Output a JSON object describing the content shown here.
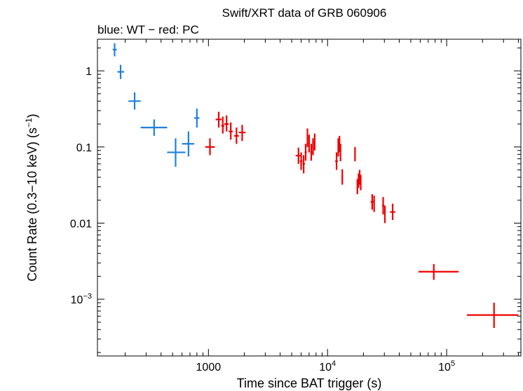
{
  "chart_data": {
    "type": "scatter",
    "title": "Swift/XRT data of GRB 060906",
    "subtitle": "blue: WT − red: PC",
    "xlabel": "Time since BAT trigger (s)",
    "ylabel": "Count Rate (0.3−10 keV) (s",
    "ylabel_sup": "−1",
    "ylabel_end": ")",
    "xscale": "log",
    "yscale": "log",
    "xlim": [
      117,
      420000
    ],
    "ylim": [
      0.00018,
      2.6
    ],
    "x_ticks": [
      {
        "value": 1000,
        "label": "1000"
      },
      {
        "value": 10000,
        "label": "10",
        "sup": "4"
      },
      {
        "value": 100000,
        "label": "10",
        "sup": "5"
      }
    ],
    "y_ticks": [
      {
        "value": 1,
        "label": "1"
      },
      {
        "value": 0.1,
        "label": "0.1"
      },
      {
        "value": 0.01,
        "label": "0.01"
      },
      {
        "value": 0.001,
        "label": "10",
        "sup": "−3"
      }
    ],
    "series": [
      {
        "name": "WT",
        "color": "#1f7fe0",
        "points": [
          {
            "x": 163,
            "xlo": 157,
            "xhi": 170,
            "y": 1.9,
            "ylo": 1.55,
            "yhi": 2.3
          },
          {
            "x": 183,
            "xlo": 172,
            "xhi": 196,
            "y": 0.97,
            "ylo": 0.78,
            "yhi": 1.2
          },
          {
            "x": 240,
            "xlo": 213,
            "xhi": 270,
            "y": 0.4,
            "ylo": 0.31,
            "yhi": 0.52
          },
          {
            "x": 350,
            "xlo": 270,
            "xhi": 450,
            "y": 0.18,
            "ylo": 0.14,
            "yhi": 0.23
          },
          {
            "x": 530,
            "xlo": 450,
            "xhi": 640,
            "y": 0.085,
            "ylo": 0.055,
            "yhi": 0.13
          },
          {
            "x": 680,
            "xlo": 600,
            "xhi": 760,
            "y": 0.11,
            "ylo": 0.075,
            "yhi": 0.16
          },
          {
            "x": 800,
            "xlo": 760,
            "xhi": 840,
            "y": 0.24,
            "ylo": 0.18,
            "yhi": 0.32
          }
        ]
      },
      {
        "name": "PC",
        "color": "#ee0000",
        "points": [
          {
            "x": 1030,
            "xlo": 940,
            "xhi": 1130,
            "y": 0.1,
            "ylo": 0.078,
            "yhi": 0.13
          },
          {
            "x": 1220,
            "xlo": 1150,
            "xhi": 1290,
            "y": 0.23,
            "ylo": 0.18,
            "yhi": 0.29
          },
          {
            "x": 1320,
            "xlo": 1280,
            "xhi": 1360,
            "y": 0.19,
            "ylo": 0.15,
            "yhi": 0.25
          },
          {
            "x": 1420,
            "xlo": 1360,
            "xhi": 1480,
            "y": 0.2,
            "ylo": 0.16,
            "yhi": 0.26
          },
          {
            "x": 1540,
            "xlo": 1480,
            "xhi": 1600,
            "y": 0.16,
            "ylo": 0.125,
            "yhi": 0.21
          },
          {
            "x": 1720,
            "xlo": 1640,
            "xhi": 1800,
            "y": 0.14,
            "ylo": 0.11,
            "yhi": 0.18
          },
          {
            "x": 1920,
            "xlo": 1800,
            "xhi": 2050,
            "y": 0.155,
            "ylo": 0.12,
            "yhi": 0.195
          },
          {
            "x": 5700,
            "xlo": 5400,
            "xhi": 6000,
            "y": 0.077,
            "ylo": 0.06,
            "yhi": 0.098
          },
          {
            "x": 6000,
            "xlo": 5850,
            "xhi": 6150,
            "y": 0.065,
            "ylo": 0.05,
            "yhi": 0.085
          },
          {
            "x": 6300,
            "xlo": 6150,
            "xhi": 6450,
            "y": 0.06,
            "ylo": 0.045,
            "yhi": 0.078
          },
          {
            "x": 6550,
            "xlo": 6420,
            "xhi": 6680,
            "y": 0.085,
            "ylo": 0.066,
            "yhi": 0.11
          },
          {
            "x": 6780,
            "xlo": 6680,
            "xhi": 6880,
            "y": 0.13,
            "ylo": 0.1,
            "yhi": 0.175
          },
          {
            "x": 7000,
            "xlo": 6900,
            "xhi": 7100,
            "y": 0.11,
            "ylo": 0.085,
            "yhi": 0.145
          },
          {
            "x": 7300,
            "xlo": 7150,
            "xhi": 7450,
            "y": 0.085,
            "ylo": 0.066,
            "yhi": 0.11
          },
          {
            "x": 7550,
            "xlo": 7430,
            "xhi": 7670,
            "y": 0.1,
            "ylo": 0.078,
            "yhi": 0.13
          },
          {
            "x": 7800,
            "xlo": 7680,
            "xhi": 7920,
            "y": 0.115,
            "ylo": 0.09,
            "yhi": 0.15
          },
          {
            "x": 11900,
            "xlo": 11600,
            "xhi": 12200,
            "y": 0.065,
            "ylo": 0.05,
            "yhi": 0.085
          },
          {
            "x": 12300,
            "xlo": 12150,
            "xhi": 12450,
            "y": 0.1,
            "ylo": 0.075,
            "yhi": 0.13
          },
          {
            "x": 12600,
            "xlo": 12450,
            "xhi": 12750,
            "y": 0.11,
            "ylo": 0.085,
            "yhi": 0.14
          },
          {
            "x": 12850,
            "xlo": 12750,
            "xhi": 12950,
            "y": 0.085,
            "ylo": 0.065,
            "yhi": 0.11
          },
          {
            "x": 13300,
            "xlo": 13100,
            "xhi": 13500,
            "y": 0.04,
            "ylo": 0.032,
            "yhi": 0.051
          },
          {
            "x": 17000,
            "xlo": 16800,
            "xhi": 17200,
            "y": 0.082,
            "ylo": 0.065,
            "yhi": 0.1
          },
          {
            "x": 17800,
            "xlo": 17600,
            "xhi": 18000,
            "y": 0.03,
            "ylo": 0.024,
            "yhi": 0.038
          },
          {
            "x": 18200,
            "xlo": 18000,
            "xhi": 18400,
            "y": 0.036,
            "ylo": 0.029,
            "yhi": 0.045
          },
          {
            "x": 18600,
            "xlo": 18400,
            "xhi": 18800,
            "y": 0.04,
            "ylo": 0.032,
            "yhi": 0.05
          },
          {
            "x": 19000,
            "xlo": 18800,
            "xhi": 19200,
            "y": 0.034,
            "ylo": 0.027,
            "yhi": 0.043
          },
          {
            "x": 23700,
            "xlo": 23000,
            "xhi": 24400,
            "y": 0.019,
            "ylo": 0.015,
            "yhi": 0.024
          },
          {
            "x": 24600,
            "xlo": 24300,
            "xhi": 24900,
            "y": 0.018,
            "ylo": 0.014,
            "yhi": 0.023
          },
          {
            "x": 29300,
            "xlo": 28700,
            "xhi": 29900,
            "y": 0.017,
            "ylo": 0.013,
            "yhi": 0.022
          },
          {
            "x": 30300,
            "xlo": 29900,
            "xhi": 30700,
            "y": 0.013,
            "ylo": 0.01,
            "yhi": 0.017
          },
          {
            "x": 35200,
            "xlo": 33500,
            "xhi": 37000,
            "y": 0.014,
            "ylo": 0.011,
            "yhi": 0.018
          },
          {
            "x": 78000,
            "xlo": 58000,
            "xhi": 126000,
            "y": 0.0023,
            "ylo": 0.0018,
            "yhi": 0.0029
          },
          {
            "x": 250000,
            "xlo": 148000,
            "xhi": 400000,
            "y": 0.00062,
            "ylo": 0.00042,
            "yhi": 0.0009
          }
        ]
      }
    ]
  }
}
